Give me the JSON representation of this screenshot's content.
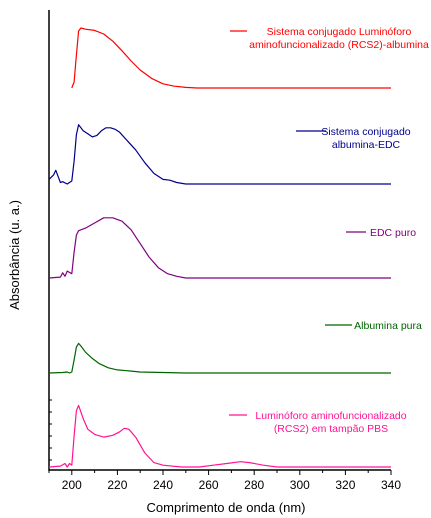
{
  "chart_data": {
    "type": "line",
    "xlabel": "Comprimento de onda (nm)",
    "ylabel": "Absorbância (u. a.)",
    "xlim": [
      190,
      340
    ],
    "xticks": [
      200,
      220,
      240,
      260,
      280,
      300,
      320,
      340
    ],
    "legend_placement": "beside each trace (stacked offsets)",
    "grid": false,
    "series": [
      {
        "name_lines": [
          "Sistema conjugado Luminóforo",
          "aminofuncionalizado (RCS2)-albumina"
        ],
        "color": "#ff0000",
        "offset": 4,
        "points": [
          [
            200,
            0.0
          ],
          [
            201,
            0.1
          ],
          [
            202,
            0.55
          ],
          [
            203,
            0.95
          ],
          [
            204,
            1.0
          ],
          [
            206,
            0.98
          ],
          [
            210,
            0.96
          ],
          [
            214,
            0.9
          ],
          [
            218,
            0.78
          ],
          [
            222,
            0.62
          ],
          [
            226,
            0.45
          ],
          [
            230,
            0.3
          ],
          [
            235,
            0.16
          ],
          [
            240,
            0.07
          ],
          [
            245,
            0.03
          ],
          [
            250,
            0.01
          ],
          [
            255,
            0.0
          ],
          [
            340,
            0.0
          ]
        ]
      },
      {
        "name_lines": [
          "Sistema conjugado",
          "albumina-EDC"
        ],
        "color": "#00008b",
        "offset": 3,
        "points": [
          [
            190,
            0.06
          ],
          [
            192,
            0.12
          ],
          [
            193,
            0.18
          ],
          [
            194,
            0.1
          ],
          [
            195,
            0.02
          ],
          [
            196,
            0.03
          ],
          [
            198,
            0.0
          ],
          [
            199,
            0.02
          ],
          [
            200,
            0.04
          ],
          [
            201,
            0.3
          ],
          [
            202,
            0.65
          ],
          [
            203,
            0.78
          ],
          [
            205,
            0.7
          ],
          [
            207,
            0.66
          ],
          [
            209,
            0.62
          ],
          [
            211,
            0.64
          ],
          [
            213,
            0.7
          ],
          [
            215,
            0.74
          ],
          [
            217,
            0.74
          ],
          [
            219,
            0.72
          ],
          [
            221,
            0.68
          ],
          [
            224,
            0.58
          ],
          [
            228,
            0.45
          ],
          [
            232,
            0.28
          ],
          [
            236,
            0.14
          ],
          [
            240,
            0.06
          ],
          [
            243,
            0.05
          ],
          [
            246,
            0.02
          ],
          [
            250,
            0.0
          ],
          [
            340,
            0.0
          ]
        ]
      },
      {
        "name_lines": [
          "EDC puro"
        ],
        "color": "#800080",
        "offset": 2,
        "points": [
          [
            190,
            0.0
          ],
          [
            195,
            0.01
          ],
          [
            196,
            0.06
          ],
          [
            197,
            0.02
          ],
          [
            198,
            0.08
          ],
          [
            200,
            0.05
          ],
          [
            201,
            0.3
          ],
          [
            202,
            0.5
          ],
          [
            203,
            0.55
          ],
          [
            206,
            0.58
          ],
          [
            210,
            0.64
          ],
          [
            214,
            0.7
          ],
          [
            218,
            0.7
          ],
          [
            222,
            0.66
          ],
          [
            226,
            0.56
          ],
          [
            230,
            0.4
          ],
          [
            234,
            0.24
          ],
          [
            238,
            0.12
          ],
          [
            242,
            0.05
          ],
          [
            246,
            0.02
          ],
          [
            250,
            0.0
          ],
          [
            340,
            0.0
          ]
        ]
      },
      {
        "name_lines": [
          "Albumina pura"
        ],
        "color": "#006400",
        "offset": 1,
        "points": [
          [
            190,
            0.0
          ],
          [
            196,
            0.01
          ],
          [
            198,
            0.02
          ],
          [
            199,
            0.0
          ],
          [
            200,
            0.02
          ],
          [
            201,
            0.25
          ],
          [
            202,
            0.5
          ],
          [
            203,
            0.57
          ],
          [
            204,
            0.52
          ],
          [
            206,
            0.4
          ],
          [
            209,
            0.28
          ],
          [
            212,
            0.18
          ],
          [
            216,
            0.1
          ],
          [
            220,
            0.06
          ],
          [
            225,
            0.04
          ],
          [
            230,
            0.02
          ],
          [
            240,
            0.01
          ],
          [
            250,
            0.0
          ],
          [
            340,
            0.0
          ]
        ]
      },
      {
        "name_lines": [
          "Luminóforo aminofuncionalizado",
          "(RCS2) em tampão PBS"
        ],
        "color": "#ff1493",
        "offset": 0,
        "points": [
          [
            190,
            0.0
          ],
          [
            195,
            0.01
          ],
          [
            197,
            0.04
          ],
          [
            198,
            0.0
          ],
          [
            199,
            0.04
          ],
          [
            200,
            0.02
          ],
          [
            201,
            0.35
          ],
          [
            202,
            0.64
          ],
          [
            203,
            0.7
          ],
          [
            205,
            0.55
          ],
          [
            207,
            0.43
          ],
          [
            210,
            0.37
          ],
          [
            214,
            0.34
          ],
          [
            218,
            0.36
          ],
          [
            221,
            0.4
          ],
          [
            223,
            0.44
          ],
          [
            225,
            0.43
          ],
          [
            228,
            0.34
          ],
          [
            232,
            0.16
          ],
          [
            236,
            0.05
          ],
          [
            240,
            0.02
          ],
          [
            248,
            0.0
          ],
          [
            256,
            0.0
          ],
          [
            262,
            0.02
          ],
          [
            268,
            0.04
          ],
          [
            274,
            0.06
          ],
          [
            278,
            0.05
          ],
          [
            284,
            0.02
          ],
          [
            290,
            0.0
          ],
          [
            340,
            0.0
          ]
        ]
      }
    ]
  }
}
